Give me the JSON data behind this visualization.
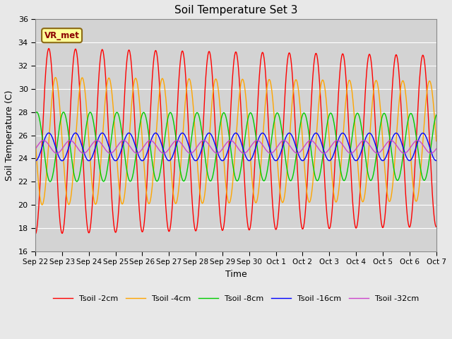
{
  "title": "Soil Temperature Set 3",
  "xlabel": "Time",
  "ylabel": "Soil Temperature (C)",
  "ylim": [
    16,
    36
  ],
  "yticks": [
    16,
    18,
    20,
    22,
    24,
    26,
    28,
    30,
    32,
    34,
    36
  ],
  "annotation": "VR_met",
  "fig_bg_color": "#e8e8e8",
  "plot_bg_color": "#d3d3d3",
  "series": [
    {
      "label": "Tsoil -2cm",
      "color": "#ff0000",
      "amplitude": 8.0,
      "mean": 25.5,
      "phase": 0.0,
      "phase_shift": 0.0,
      "decay": 0.08
    },
    {
      "label": "Tsoil -4cm",
      "color": "#ffa500",
      "amplitude": 5.5,
      "mean": 25.5,
      "phase": 0.0,
      "phase_shift": 0.25,
      "decay": 0.06
    },
    {
      "label": "Tsoil -8cm",
      "color": "#00cc00",
      "amplitude": 3.0,
      "mean": 25.0,
      "phase": 0.0,
      "phase_shift": 0.55,
      "decay": 0.04
    },
    {
      "label": "Tsoil -16cm",
      "color": "#0000ff",
      "amplitude": 1.2,
      "mean": 25.0,
      "phase": 0.0,
      "phase_shift": 1.0,
      "decay": 0.01
    },
    {
      "label": "Tsoil -32cm",
      "color": "#cc44cc",
      "amplitude": 0.55,
      "mean": 25.0,
      "phase": 0.0,
      "phase_shift": 1.8,
      "decay": 0.005
    }
  ],
  "xtick_labels": [
    "Sep 22",
    "Sep 23",
    "Sep 24",
    "Sep 25",
    "Sep 26",
    "Sep 27",
    "Sep 28",
    "Sep 29",
    "Sep 30",
    "Oct 1",
    "Oct 2",
    "Oct 3",
    "Oct 4",
    "Oct 5",
    "Oct 6",
    "Oct 7"
  ],
  "n_days": 15,
  "samples_per_day": 96,
  "figsize": [
    6.4,
    4.8
  ],
  "dpi": 100
}
